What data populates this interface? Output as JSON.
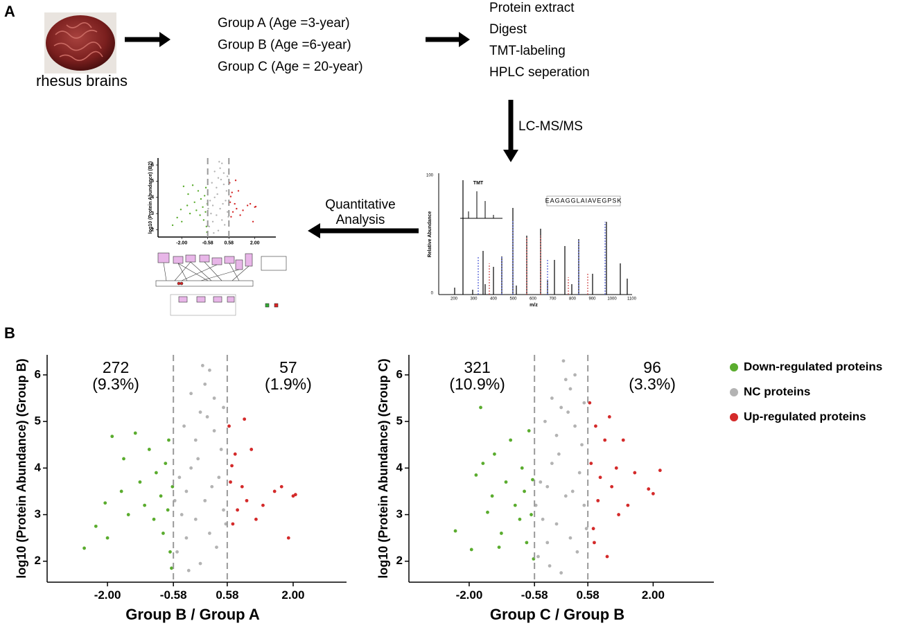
{
  "panel_a": {
    "label": "A",
    "source_label": "rhesus brains",
    "groups": [
      "Group A (Age =3-year)",
      "Group B (Age =6-year)",
      "Group C (Age = 20-year)"
    ],
    "steps": [
      "Protein extract",
      "Digest",
      "TMT-labeling",
      "HPLC seperation"
    ],
    "lcms_label": "LC-MS/MS",
    "analysis_label": [
      "Quantitative",
      "Analysis"
    ],
    "inset_scatter": {
      "y_label": "log10 (Protein Abundance) (B2)"
    },
    "spectrum": {
      "y_label": "Relative Abundance",
      "x_label": "m/z",
      "y_ticks": [
        "0",
        "100"
      ],
      "x_ticks": [
        "200",
        "300",
        "400",
        "500",
        "600",
        "700",
        "800",
        "900",
        "1000",
        "1100"
      ],
      "inset_title": "TMT",
      "sequence": "EAGAGGLAIAVEGPSK"
    }
  },
  "panel_b": {
    "label": "B"
  },
  "chart_data": [
    {
      "type": "scatter",
      "x_label": "Group B / Group A",
      "y_label": "log10 (Protein Abundance) (Group B)",
      "xlim": [
        -3.3,
        3.15
      ],
      "ylim": [
        1.55,
        6.43
      ],
      "xticks": [
        {
          "value": -2,
          "label": "-2.00"
        },
        -0.58,
        0.58,
        {
          "value": 2,
          "label": "2.00"
        }
      ],
      "yticks": [
        2,
        3,
        4,
        5,
        6
      ],
      "thresholds": [
        -0.58,
        0.58
      ],
      "annotations": {
        "left": [
          "272",
          "(9.3%)"
        ],
        "right": [
          "57",
          "(1.9%)"
        ]
      },
      "series": [
        {
          "color": "#5aac2e",
          "x": [
            -2.5,
            -2.25,
            -2.0,
            -1.9,
            -2.05,
            -1.7,
            -1.65,
            -1.55,
            -1.4,
            -1.3,
            -1.2,
            -1.1,
            -1.0,
            -0.95,
            -0.85,
            -0.8,
            -0.75,
            -0.7,
            -0.65,
            -0.62,
            -0.6,
            -0.68
          ],
          "y": [
            2.28,
            2.75,
            2.5,
            4.68,
            3.25,
            3.5,
            4.2,
            3.0,
            4.75,
            3.7,
            3.2,
            4.4,
            2.9,
            3.9,
            3.4,
            2.6,
            4.1,
            3.1,
            2.2,
            1.85,
            3.6,
            4.6
          ]
        },
        {
          "color": "#b3b3b3",
          "x": [
            -0.5,
            -0.4,
            -0.3,
            -0.2,
            -0.1,
            0,
            0.1,
            0.05,
            0.2,
            -0.2,
            0.3,
            0.4,
            0.5,
            0.2,
            0,
            -0.3,
            -0.45,
            0.35,
            0.1,
            -0.1,
            0.25,
            -0.05,
            0.45,
            -0.35,
            0.15,
            0.55,
            -0.55,
            0.3,
            -0.25,
            0.5
          ],
          "y": [
            2.2,
            3.0,
            3.5,
            4.0,
            4.6,
            5.2,
            5.8,
            6.2,
            6.1,
            5.6,
            4.8,
            3.8,
            3.1,
            2.6,
            1.95,
            2.5,
            3.8,
            2.3,
            3.3,
            2.9,
            3.6,
            4.2,
            4.4,
            4.9,
            5.1,
            2.8,
            3.3,
            5.5,
            1.8,
            5.3
          ]
        },
        {
          "color": "#d42a2a",
          "x": [
            0.62,
            0.65,
            0.7,
            0.75,
            0.8,
            0.9,
            0.95,
            1.0,
            1.1,
            1.2,
            1.35,
            1.6,
            1.75,
            1.9,
            2.0,
            2.05,
            0.68
          ],
          "y": [
            4.9,
            3.7,
            2.8,
            4.3,
            3.1,
            3.6,
            5.05,
            3.3,
            4.4,
            2.9,
            3.2,
            3.5,
            3.6,
            2.5,
            3.4,
            3.43,
            4.05
          ]
        }
      ]
    },
    {
      "type": "scatter",
      "x_label": "Group C / Group B",
      "y_label": "log10 (Protein Abundance) (Group C)",
      "xlim": [
        -3.31,
        3.32
      ],
      "ylim": [
        1.55,
        6.43
      ],
      "xticks": [
        {
          "value": -2,
          "label": "-2.00"
        },
        -0.58,
        0.58,
        {
          "value": 2,
          "label": "2.00"
        }
      ],
      "yticks": [
        2,
        3,
        4,
        5,
        6
      ],
      "thresholds": [
        -0.58,
        0.58
      ],
      "annotations": {
        "left": [
          "321",
          "(10.9%)"
        ],
        "right": [
          "96",
          "(3.3%)"
        ]
      },
      "series": [
        {
          "name": "Down-regulated proteins",
          "color": "#5aac2e",
          "x": [
            -2.3,
            -1.95,
            -1.85,
            -1.75,
            -1.7,
            -1.5,
            -1.45,
            -1.3,
            -1.2,
            -1.1,
            -1.0,
            -0.9,
            -0.85,
            -0.8,
            -0.75,
            -0.7,
            -0.65,
            -0.6,
            -0.62,
            -1.6,
            -1.35
          ],
          "y": [
            2.65,
            2.25,
            3.85,
            5.3,
            4.1,
            3.4,
            4.3,
            2.6,
            3.7,
            4.6,
            3.2,
            2.9,
            4.0,
            3.5,
            2.4,
            4.8,
            3.0,
            2.05,
            3.75,
            3.05,
            2.3
          ]
        },
        {
          "name": "NC proteins",
          "color": "#b3b3b3",
          "x": [
            -0.5,
            -0.4,
            -0.3,
            -0.2,
            -0.1,
            0,
            0.1,
            0.05,
            0.2,
            -0.2,
            0.3,
            0.4,
            0.5,
            0.2,
            0,
            -0.3,
            -0.45,
            0.35,
            0.1,
            -0.1,
            0.25,
            -0.05,
            0.45,
            -0.35,
            0.15,
            0.55,
            -0.55,
            0.3,
            -0.25,
            0.5
          ],
          "y": [
            2.1,
            2.9,
            3.6,
            4.1,
            4.7,
            5.3,
            5.9,
            6.3,
            5.7,
            5.5,
            4.9,
            3.9,
            3.2,
            2.5,
            1.75,
            2.4,
            3.7,
            2.2,
            3.4,
            2.8,
            3.5,
            4.3,
            4.5,
            5.0,
            5.2,
            2.7,
            3.2,
            6.0,
            1.9,
            5.4
          ]
        },
        {
          "name": "Up-regulated proteins",
          "color": "#d42a2a",
          "x": [
            0.62,
            0.65,
            0.7,
            0.75,
            0.8,
            0.85,
            0.95,
            1.0,
            1.1,
            1.2,
            1.25,
            1.35,
            1.45,
            1.6,
            1.9,
            2.0,
            2.15,
            0.72,
            1.05
          ],
          "y": [
            5.4,
            4.1,
            2.7,
            4.9,
            3.3,
            3.8,
            4.6,
            2.1,
            3.6,
            4.0,
            3.0,
            4.6,
            3.2,
            3.9,
            3.55,
            3.45,
            3.95,
            2.4,
            5.1
          ]
        }
      ]
    }
  ]
}
